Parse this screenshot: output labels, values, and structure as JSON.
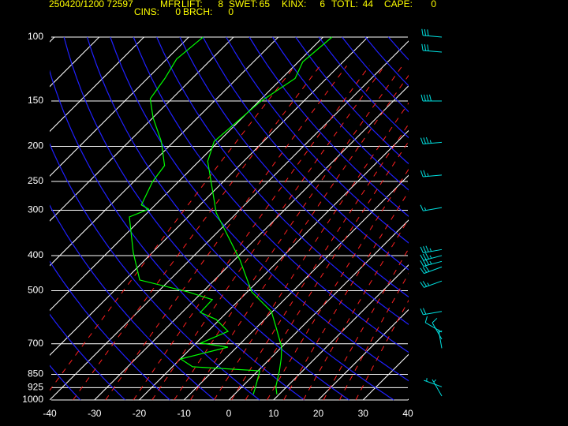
{
  "header": {
    "date_station": "250420/1200 72597",
    "site": "MFR",
    "indices": [
      {
        "label": "LIFT:",
        "value": 8
      },
      {
        "label": "SWET:",
        "value": 65
      },
      {
        "label": "KINX:",
        "value": 6
      },
      {
        "label": "TOTL:",
        "value": 44
      },
      {
        "label": "CAPE:",
        "value": 0
      },
      {
        "label": "CINS:",
        "value": 0
      },
      {
        "label": "BRCH:",
        "value": 0
      }
    ]
  },
  "chart_data": {
    "type": "skewt",
    "xlim": [
      -40,
      40
    ],
    "xticks": [
      -40,
      -30,
      -20,
      -10,
      0,
      10,
      20,
      30,
      40
    ],
    "ylim": [
      1000,
      100
    ],
    "log_y": true,
    "yticks": [
      100,
      150,
      200,
      250,
      300,
      400,
      500,
      700,
      850,
      925,
      1000
    ],
    "series": [
      {
        "color": "#00ff00",
        "pressure": [
          965,
          918,
          831,
          770,
          715,
          640,
          571,
          504,
          412,
          305,
          220,
          194,
          151,
          130,
          117,
          100
        ],
        "values": [
          9.5,
          7.5,
          4.8,
          2.5,
          0,
          -5,
          -10.2,
          -19,
          -28.7,
          -44.6,
          -58,
          -61,
          -59.6,
          -57,
          -59,
          -58
        ]
      },
      {
        "color": "#00ff00",
        "pressure": [
          965,
          918,
          831,
          810,
          771,
          715,
          697,
          647,
          600,
          574,
          529,
          504,
          467,
          392,
          313,
          298,
          290,
          250,
          226,
          194,
          167,
          148,
          130,
          115,
          100
        ],
        "values": [
          4.2,
          3.0,
          0.4,
          -15.5,
          -19.9,
          -12.0,
          -19.0,
          -15.5,
          -20.8,
          -25.9,
          -26.1,
          -33.2,
          -46.7,
          -54.3,
          -63.1,
          -60.5,
          -63.1,
          -65.8,
          -66.7,
          -72.8,
          -79.9,
          -84.8,
          -86.1,
          -87.8,
          -86.8
        ]
      }
    ],
    "winds": {
      "color": "#00e0e0",
      "pressure": [
        100,
        110,
        150,
        195,
        240,
        295,
        385,
        400,
        415,
        430,
        470,
        570,
        650,
        680,
        720,
        920,
        975
      ],
      "direction": [
        275,
        275,
        270,
        265,
        265,
        260,
        260,
        255,
        255,
        250,
        250,
        260,
        300,
        330,
        350,
        290,
        330
      ],
      "speed": [
        30,
        30,
        40,
        35,
        25,
        15,
        35,
        35,
        35,
        30,
        25,
        20,
        10,
        10,
        5,
        5,
        5
      ]
    }
  }
}
